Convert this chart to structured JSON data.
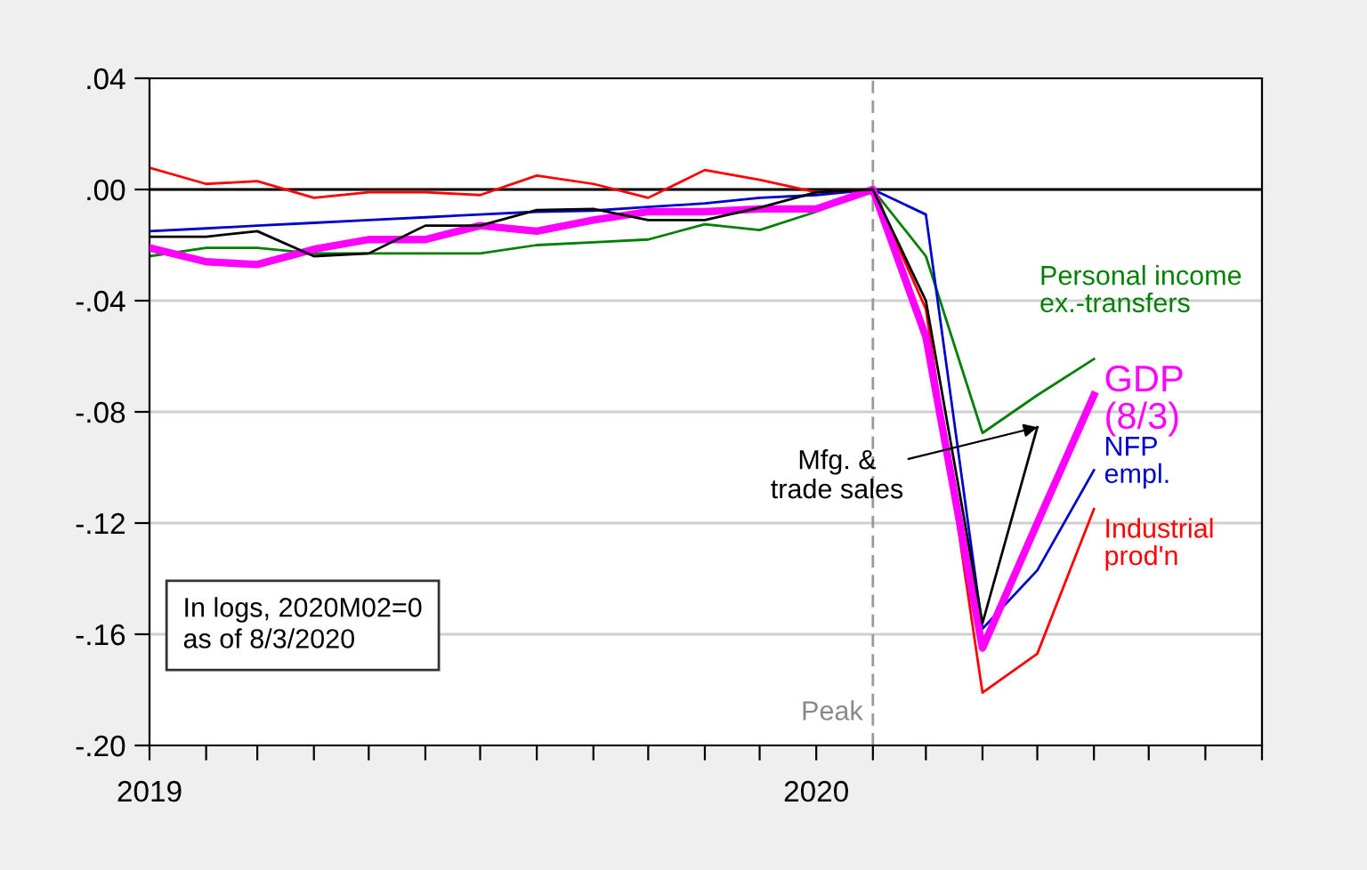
{
  "chart_data": {
    "type": "line",
    "x": [
      "2019-01",
      "2019-02",
      "2019-03",
      "2019-04",
      "2019-05",
      "2019-06",
      "2019-07",
      "2019-08",
      "2019-09",
      "2019-10",
      "2019-11",
      "2019-12",
      "2020-01",
      "2020-02",
      "2020-03",
      "2020-04",
      "2020-05",
      "2020-06"
    ],
    "series": [
      {
        "name": "Personal income\nex.-transfers",
        "color": "#008000",
        "values": [
          -0.024,
          -0.021,
          -0.021,
          -0.023,
          -0.023,
          -0.023,
          -0.023,
          -0.02,
          -0.019,
          -0.018,
          -0.0125,
          -0.0146,
          -0.008,
          0,
          -0.024,
          -0.0876,
          -0.074,
          -0.061
        ]
      },
      {
        "name": "GDP\n(8/3)",
        "color": "#ff00ff",
        "values": [
          -0.021,
          -0.026,
          -0.027,
          -0.0215,
          -0.018,
          -0.018,
          -0.013,
          -0.015,
          -0.011,
          -0.008,
          -0.008,
          -0.007,
          -0.007,
          0,
          -0.053,
          -0.165,
          -0.12,
          -0.074
        ]
      },
      {
        "name": "NFP\nempl.",
        "color": "#0000cc",
        "values": [
          -0.015,
          -0.014,
          -0.013,
          -0.012,
          -0.011,
          -0.01,
          -0.009,
          -0.008,
          -0.0076,
          -0.0063,
          -0.005,
          -0.003,
          -0.002,
          0,
          -0.009,
          -0.158,
          -0.137,
          -0.101
        ]
      },
      {
        "name": "Industrial\nprod'n",
        "color": "#ff0000",
        "values": [
          0.0078,
          0.002,
          0.003,
          -0.003,
          -0.001,
          -0.001,
          -0.002,
          0.005,
          0.002,
          -0.003,
          0.007,
          0.0035,
          -0.001,
          0,
          -0.043,
          -0.181,
          -0.167,
          -0.115
        ]
      },
      {
        "color": "#000000",
        "values": [
          -0.017,
          -0.017,
          -0.015,
          -0.024,
          -0.023,
          -0.013,
          -0.013,
          -0.0074,
          -0.007,
          -0.011,
          -0.011,
          -0.0065,
          -0.001,
          0,
          -0.04,
          -0.156,
          -0.0855,
          null
        ]
      }
    ],
    "xlim": [
      "2019-01",
      "2020-09"
    ],
    "xticks": [
      {
        "value": "2019-01",
        "label": "2019"
      },
      {
        "value": "2019-02",
        "label": null
      },
      {
        "value": "2019-03",
        "label": null
      },
      {
        "value": "2019-04",
        "label": null
      },
      {
        "value": "2019-05",
        "label": null
      },
      {
        "value": "2019-06",
        "label": null
      },
      {
        "value": "2019-07",
        "label": null
      },
      {
        "value": "2019-08",
        "label": null
      },
      {
        "value": "2019-09",
        "label": null
      },
      {
        "value": "2019-10",
        "label": null
      },
      {
        "value": "2019-11",
        "label": null
      },
      {
        "value": "2019-12",
        "label": null
      },
      {
        "value": "2020-01",
        "label": "2020"
      },
      {
        "value": "2020-02",
        "label": null
      },
      {
        "value": "2020-03",
        "label": null
      },
      {
        "value": "2020-04",
        "label": null
      },
      {
        "value": "2020-05",
        "label": null
      },
      {
        "value": "2020-06",
        "label": null
      },
      {
        "value": "2020-07",
        "label": null
      },
      {
        "value": "2020-08",
        "label": null
      },
      {
        "value": "2020-09",
        "label": null
      }
    ],
    "ylim": [
      -0.2,
      0.04
    ],
    "yticks": [
      {
        "value": 0.04,
        "label": ".04"
      },
      {
        "value": 0,
        "label": ".00"
      },
      {
        "value": -0.04,
        "label": "-.04"
      },
      {
        "value": -0.08,
        "label": "-.08"
      },
      {
        "value": -0.12,
        "label": "-.12"
      },
      {
        "value": -0.16,
        "label": "-.16"
      },
      {
        "value": -0.2,
        "label": "-.20"
      }
    ],
    "grid": "y",
    "legend": false,
    "ref_lines": [
      {
        "axis": "y",
        "value": 0,
        "color": "#000000",
        "line_style": "solid"
      },
      {
        "axis": "x",
        "value": "2020-02",
        "label": "Peak",
        "color": "#999999",
        "line_style": "dashed"
      }
    ],
    "annotations": [
      {
        "text": "Mfg. &\ntrade sales",
        "x": "2020-05",
        "y": -0.0855
      },
      "In logs, 2020M02=0\nas of 8/3/2020"
    ]
  }
}
